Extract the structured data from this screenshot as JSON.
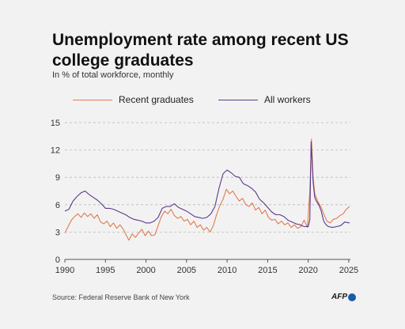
{
  "header": {
    "title": "Unemployment rate among recent US college graduates",
    "subtitle": "In % of total workforce, monthly"
  },
  "footer": {
    "source": "Source: Federal Reserve Bank of New York",
    "logo_text": "AFP"
  },
  "chart_data": {
    "type": "line",
    "title": "Unemployment rate among recent US college graduates",
    "subtitle": "In % of total workforce, monthly",
    "xlim": [
      1990,
      2025.2
    ],
    "ylim": [
      0,
      15
    ],
    "x_ticks": [
      1990,
      1995,
      2000,
      2005,
      2010,
      2015,
      2020,
      2025
    ],
    "y_ticks": [
      0,
      3,
      6,
      9,
      12,
      15
    ],
    "grid": "horizontal dashed",
    "legend_position": "top",
    "series": [
      {
        "name": "Recent graduates",
        "color": "#e07b4f",
        "points": [
          [
            1990.0,
            2.9
          ],
          [
            1990.4,
            3.6
          ],
          [
            1990.8,
            4.3
          ],
          [
            1991.2,
            4.7
          ],
          [
            1991.6,
            5.0
          ],
          [
            1992.0,
            4.6
          ],
          [
            1992.4,
            5.1
          ],
          [
            1992.8,
            4.7
          ],
          [
            1993.2,
            5.0
          ],
          [
            1993.6,
            4.5
          ],
          [
            1994.0,
            4.9
          ],
          [
            1994.4,
            4.1
          ],
          [
            1994.8,
            3.9
          ],
          [
            1995.2,
            4.2
          ],
          [
            1995.6,
            3.6
          ],
          [
            1996.0,
            4.0
          ],
          [
            1996.4,
            3.4
          ],
          [
            1996.8,
            3.8
          ],
          [
            1997.2,
            3.3
          ],
          [
            1997.6,
            2.6
          ],
          [
            1997.9,
            2.1
          ],
          [
            1998.3,
            2.8
          ],
          [
            1998.7,
            2.4
          ],
          [
            1999.1,
            2.9
          ],
          [
            1999.5,
            3.3
          ],
          [
            1999.9,
            2.6
          ],
          [
            2000.3,
            3.1
          ],
          [
            2000.7,
            2.6
          ],
          [
            2001.1,
            2.7
          ],
          [
            2001.5,
            3.7
          ],
          [
            2001.9,
            4.7
          ],
          [
            2002.3,
            5.3
          ],
          [
            2002.7,
            5.0
          ],
          [
            2003.1,
            5.5
          ],
          [
            2003.5,
            4.8
          ],
          [
            2003.9,
            4.5
          ],
          [
            2004.3,
            4.7
          ],
          [
            2004.7,
            4.2
          ],
          [
            2005.1,
            4.4
          ],
          [
            2005.5,
            3.8
          ],
          [
            2005.9,
            4.2
          ],
          [
            2006.3,
            3.5
          ],
          [
            2006.7,
            3.8
          ],
          [
            2007.1,
            3.2
          ],
          [
            2007.5,
            3.5
          ],
          [
            2007.9,
            3.0
          ],
          [
            2008.3,
            3.7
          ],
          [
            2008.7,
            4.9
          ],
          [
            2009.1,
            5.9
          ],
          [
            2009.5,
            6.6
          ],
          [
            2009.9,
            7.7
          ],
          [
            2010.3,
            7.2
          ],
          [
            2010.7,
            7.5
          ],
          [
            2011.1,
            6.9
          ],
          [
            2011.5,
            6.4
          ],
          [
            2011.9,
            6.7
          ],
          [
            2012.3,
            6.0
          ],
          [
            2012.7,
            5.8
          ],
          [
            2013.1,
            6.2
          ],
          [
            2013.5,
            5.4
          ],
          [
            2013.9,
            5.7
          ],
          [
            2014.3,
            5.0
          ],
          [
            2014.7,
            5.4
          ],
          [
            2015.1,
            4.6
          ],
          [
            2015.5,
            4.3
          ],
          [
            2015.9,
            4.4
          ],
          [
            2016.3,
            3.9
          ],
          [
            2016.7,
            4.2
          ],
          [
            2017.1,
            3.8
          ],
          [
            2017.5,
            4.0
          ],
          [
            2017.9,
            3.5
          ],
          [
            2018.3,
            3.8
          ],
          [
            2018.7,
            3.4
          ],
          [
            2019.1,
            3.6
          ],
          [
            2019.5,
            4.3
          ],
          [
            2019.9,
            3.5
          ],
          [
            2020.2,
            7.5
          ],
          [
            2020.4,
            13.2
          ],
          [
            2020.6,
            9.0
          ],
          [
            2020.8,
            7.2
          ],
          [
            2021.2,
            6.3
          ],
          [
            2021.6,
            5.7
          ],
          [
            2021.9,
            5.0
          ],
          [
            2022.3,
            4.2
          ],
          [
            2022.7,
            4.0
          ],
          [
            2023.1,
            4.4
          ],
          [
            2023.5,
            4.5
          ],
          [
            2023.9,
            4.8
          ],
          [
            2024.3,
            5.0
          ],
          [
            2024.7,
            5.5
          ],
          [
            2025.1,
            5.8
          ]
        ]
      },
      {
        "name": "All workers",
        "color": "#5a3a8c",
        "points": [
          [
            1990.0,
            5.3
          ],
          [
            1990.5,
            5.5
          ],
          [
            1991.0,
            6.4
          ],
          [
            1991.5,
            6.9
          ],
          [
            1992.0,
            7.3
          ],
          [
            1992.5,
            7.5
          ],
          [
            1993.0,
            7.1
          ],
          [
            1993.5,
            6.8
          ],
          [
            1994.0,
            6.5
          ],
          [
            1994.5,
            6.1
          ],
          [
            1995.0,
            5.6
          ],
          [
            1995.5,
            5.6
          ],
          [
            1996.0,
            5.5
          ],
          [
            1996.5,
            5.3
          ],
          [
            1997.0,
            5.1
          ],
          [
            1997.5,
            4.9
          ],
          [
            1998.0,
            4.6
          ],
          [
            1998.5,
            4.4
          ],
          [
            1999.0,
            4.3
          ],
          [
            1999.5,
            4.2
          ],
          [
            2000.0,
            4.0
          ],
          [
            2000.5,
            4.0
          ],
          [
            2001.0,
            4.2
          ],
          [
            2001.5,
            4.6
          ],
          [
            2002.0,
            5.6
          ],
          [
            2002.5,
            5.8
          ],
          [
            2003.0,
            5.8
          ],
          [
            2003.5,
            6.1
          ],
          [
            2004.0,
            5.7
          ],
          [
            2004.5,
            5.5
          ],
          [
            2005.0,
            5.3
          ],
          [
            2005.5,
            5.0
          ],
          [
            2006.0,
            4.7
          ],
          [
            2006.5,
            4.6
          ],
          [
            2007.0,
            4.5
          ],
          [
            2007.5,
            4.6
          ],
          [
            2008.0,
            5.0
          ],
          [
            2008.5,
            5.8
          ],
          [
            2009.0,
            7.8
          ],
          [
            2009.5,
            9.4
          ],
          [
            2010.0,
            9.8
          ],
          [
            2010.5,
            9.5
          ],
          [
            2011.0,
            9.1
          ],
          [
            2011.5,
            9.0
          ],
          [
            2012.0,
            8.3
          ],
          [
            2012.5,
            8.1
          ],
          [
            2013.0,
            7.8
          ],
          [
            2013.5,
            7.4
          ],
          [
            2014.0,
            6.6
          ],
          [
            2014.5,
            6.2
          ],
          [
            2015.0,
            5.7
          ],
          [
            2015.5,
            5.2
          ],
          [
            2016.0,
            4.9
          ],
          [
            2016.5,
            4.9
          ],
          [
            2017.0,
            4.7
          ],
          [
            2017.5,
            4.3
          ],
          [
            2018.0,
            4.1
          ],
          [
            2018.5,
            3.9
          ],
          [
            2019.0,
            3.8
          ],
          [
            2019.5,
            3.6
          ],
          [
            2020.0,
            3.6
          ],
          [
            2020.2,
            4.4
          ],
          [
            2020.35,
            12.9
          ],
          [
            2020.45,
            11.2
          ],
          [
            2020.6,
            8.5
          ],
          [
            2020.8,
            6.8
          ],
          [
            2021.0,
            6.4
          ],
          [
            2021.3,
            6.0
          ],
          [
            2021.6,
            5.3
          ],
          [
            2021.9,
            4.2
          ],
          [
            2022.2,
            3.8
          ],
          [
            2022.5,
            3.6
          ],
          [
            2023.0,
            3.5
          ],
          [
            2023.5,
            3.6
          ],
          [
            2024.0,
            3.7
          ],
          [
            2024.5,
            4.1
          ],
          [
            2025.1,
            4.0
          ]
        ]
      }
    ]
  }
}
